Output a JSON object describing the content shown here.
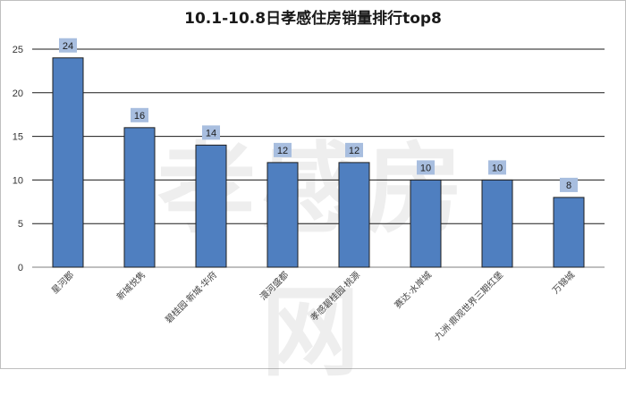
{
  "chart_data": {
    "type": "bar",
    "title": "10.1-10.8日孝感住房销量排行top8",
    "categories": [
      "星河郡",
      "新城悦隽",
      "碧桂园·新城·华府",
      "澴河盛都",
      "孝感碧桂园·桃源",
      "赛达·水岸城",
      "九洲·鼎观世界三期红堡",
      "万锦城"
    ],
    "values": [
      24,
      16,
      14,
      12,
      12,
      10,
      10,
      8
    ],
    "xlabel": "",
    "ylabel": "",
    "ylim": [
      0,
      25
    ],
    "yticks": [
      0,
      5,
      10,
      15,
      20,
      25
    ],
    "grid": true,
    "legend": "none",
    "bar_color": "#4f7fc0",
    "bar_edge_color": "#1f1f1f",
    "label_box_color": "#a8bedf"
  },
  "watermark": "孝感房网"
}
